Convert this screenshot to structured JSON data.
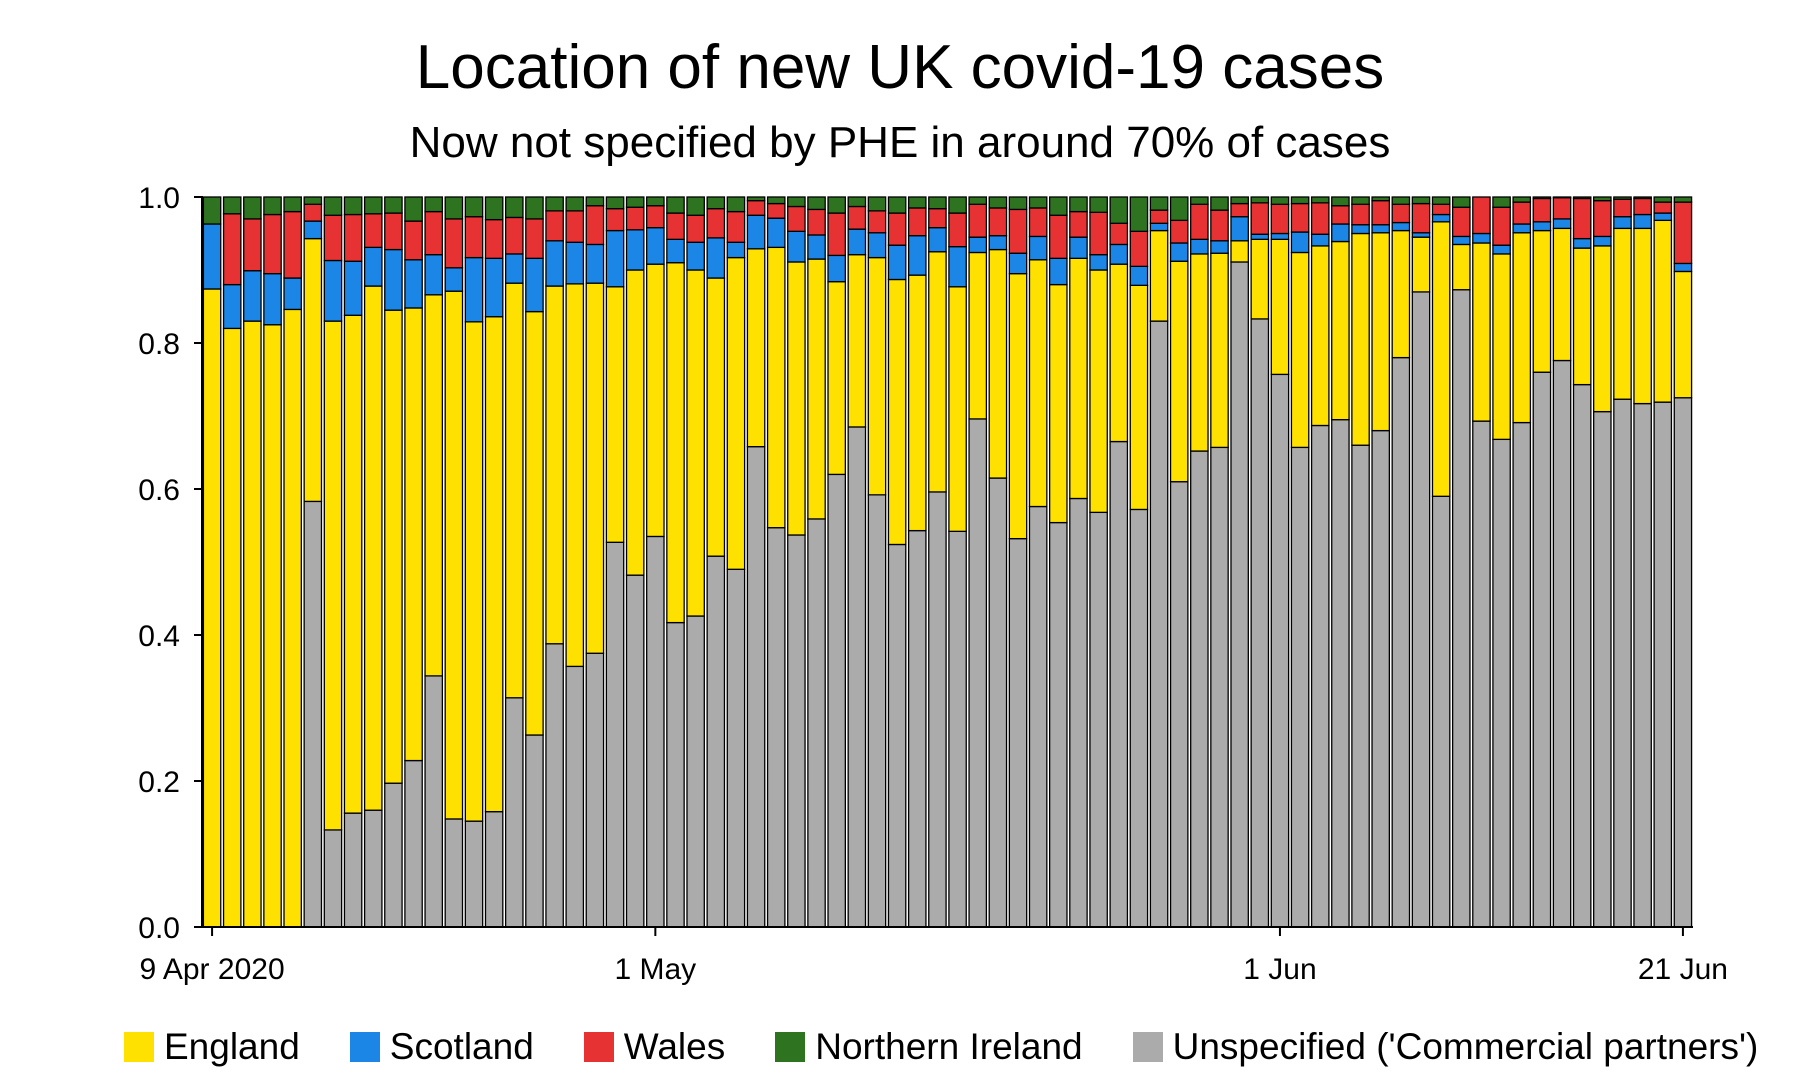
{
  "chart_data": {
    "type": "bar",
    "stacked": true,
    "title": "Location of new UK covid-19 cases",
    "subtitle": "Now not specified by PHE in around 70% of cases",
    "ylim": [
      0,
      1
    ],
    "yticks": [
      "0.0",
      "0.2",
      "0.4",
      "0.6",
      "0.8",
      "1.0"
    ],
    "xticks": [
      {
        "label": "9 Apr 2020",
        "index": 0
      },
      {
        "label": "1 May",
        "index": 22
      },
      {
        "label": "1 Jun",
        "index": 53
      },
      {
        "label": "21 Jun",
        "index": 73
      }
    ],
    "grid": false,
    "legend_position": "bottom",
    "categories": [
      "9 Apr",
      "10 Apr",
      "11 Apr",
      "12 Apr",
      "13 Apr",
      "14 Apr",
      "15 Apr",
      "16 Apr",
      "17 Apr",
      "18 Apr",
      "19 Apr",
      "20 Apr",
      "21 Apr",
      "22 Apr",
      "23 Apr",
      "24 Apr",
      "25 Apr",
      "26 Apr",
      "27 Apr",
      "28 Apr",
      "29 Apr",
      "30 Apr",
      "1 May",
      "2 May",
      "3 May",
      "4 May",
      "5 May",
      "6 May",
      "7 May",
      "8 May",
      "9 May",
      "10 May",
      "11 May",
      "12 May",
      "13 May",
      "14 May",
      "15 May",
      "16 May",
      "17 May",
      "18 May",
      "19 May",
      "20 May",
      "21 May",
      "22 May",
      "23 May",
      "24 May",
      "25 May",
      "26 May",
      "27 May",
      "28 May",
      "29 May",
      "30 May",
      "31 May",
      "1 Jun",
      "2 Jun",
      "3 Jun",
      "4 Jun",
      "5 Jun",
      "6 Jun",
      "7 Jun",
      "8 Jun",
      "9 Jun",
      "10 Jun",
      "11 Jun",
      "12 Jun",
      "13 Jun",
      "14 Jun",
      "15 Jun",
      "16 Jun",
      "17 Jun",
      "18 Jun",
      "19 Jun",
      "20 Jun",
      "21 Jun"
    ],
    "series": [
      {
        "name": "Unspecified ('Commercial partners')",
        "color": "#ababab",
        "values": [
          0,
          0,
          0,
          0,
          0,
          0.583,
          0.133,
          0.156,
          0.16,
          0.197,
          0.228,
          0.344,
          0.148,
          0.145,
          0.158,
          0.314,
          0.263,
          0.388,
          0.357,
          0.375,
          0.527,
          0.482,
          0.535,
          0.417,
          0.426,
          0.508,
          0.49,
          0.658,
          0.547,
          0.537,
          0.559,
          0.62,
          0.685,
          0.592,
          0.524,
          0.543,
          0.596,
          0.542,
          0.696,
          0.615,
          0.532,
          0.576,
          0.554,
          0.587,
          0.568,
          0.665,
          0.572,
          0.83,
          0.61,
          0.652,
          0.657,
          0.911,
          0.833,
          0.757,
          0.657,
          0.687,
          0.695,
          0.66,
          0.68,
          0.78,
          0.87,
          0.59,
          0.873,
          0.693,
          0.668,
          0.691,
          0.76,
          0.776,
          0.743,
          0.706,
          0.723,
          0.717,
          0.719,
          0.725
        ]
      },
      {
        "name": "England",
        "color": "#ffe100",
        "values": [
          0.874,
          0.82,
          0.83,
          0.825,
          0.846,
          0.36,
          0.697,
          0.682,
          0.718,
          0.648,
          0.62,
          0.522,
          0.723,
          0.684,
          0.678,
          0.568,
          0.58,
          0.49,
          0.524,
          0.507,
          0.35,
          0.418,
          0.373,
          0.493,
          0.474,
          0.381,
          0.427,
          0.271,
          0.384,
          0.374,
          0.356,
          0.264,
          0.236,
          0.325,
          0.363,
          0.35,
          0.329,
          0.335,
          0.228,
          0.313,
          0.363,
          0.338,
          0.326,
          0.329,
          0.332,
          0.243,
          0.307,
          0.124,
          0.302,
          0.27,
          0.266,
          0.029,
          0.109,
          0.185,
          0.267,
          0.246,
          0.244,
          0.29,
          0.271,
          0.174,
          0.075,
          0.376,
          0.062,
          0.244,
          0.254,
          0.26,
          0.194,
          0.181,
          0.187,
          0.227,
          0.234,
          0.24,
          0.249,
          0.173
        ]
      },
      {
        "name": "Scotland",
        "color": "#1c86e6",
        "values": [
          0.089,
          0.06,
          0.069,
          0.07,
          0.043,
          0.024,
          0.083,
          0.074,
          0.053,
          0.083,
          0.066,
          0.055,
          0.032,
          0.088,
          0.08,
          0.04,
          0.073,
          0.062,
          0.057,
          0.053,
          0.077,
          0.055,
          0.05,
          0.032,
          0.038,
          0.055,
          0.021,
          0.046,
          0.04,
          0.042,
          0.033,
          0.036,
          0.035,
          0.034,
          0.047,
          0.054,
          0.033,
          0.055,
          0.021,
          0.019,
          0.028,
          0.032,
          0.036,
          0.029,
          0.021,
          0.027,
          0.026,
          0.01,
          0.025,
          0.02,
          0.017,
          0.033,
          0.007,
          0.008,
          0.028,
          0.016,
          0.024,
          0.012,
          0.011,
          0.011,
          0.006,
          0.01,
          0.011,
          0.013,
          0.012,
          0.012,
          0.012,
          0.013,
          0.013,
          0.013,
          0.016,
          0.019,
          0.01,
          0.011
        ]
      },
      {
        "name": "Wales",
        "color": "#e63232",
        "values": [
          0,
          0.097,
          0.071,
          0.081,
          0.091,
          0.023,
          0.062,
          0.064,
          0.046,
          0.05,
          0.053,
          0.059,
          0.067,
          0.056,
          0.053,
          0.05,
          0.054,
          0.041,
          0.043,
          0.053,
          0.03,
          0.031,
          0.03,
          0.036,
          0.037,
          0.04,
          0.042,
          0.02,
          0.02,
          0.034,
          0.035,
          0.058,
          0.031,
          0.03,
          0.044,
          0.038,
          0.026,
          0.046,
          0.045,
          0.038,
          0.06,
          0.039,
          0.059,
          0.035,
          0.058,
          0.029,
          0.048,
          0.018,
          0.031,
          0.048,
          0.042,
          0.018,
          0.043,
          0.04,
          0.039,
          0.043,
          0.025,
          0.028,
          0.033,
          0.025,
          0.04,
          0.014,
          0.04,
          0.05,
          0.052,
          0.03,
          0.032,
          0.029,
          0.055,
          0.049,
          0.024,
          0.022,
          0.015,
          0.084
        ]
      },
      {
        "name": "Northern Ireland",
        "color": "#2e7320",
        "values": [
          0.037,
          0.023,
          0.03,
          0.024,
          0.02,
          0.01,
          0.025,
          0.024,
          0.023,
          0.022,
          0.033,
          0.02,
          0.03,
          0.027,
          0.031,
          0.028,
          0.03,
          0.019,
          0.019,
          0.012,
          0.016,
          0.014,
          0.012,
          0.022,
          0.025,
          0.016,
          0.02,
          0.005,
          0.009,
          0.013,
          0.017,
          0.022,
          0.013,
          0.019,
          0.022,
          0.015,
          0.016,
          0.022,
          0.01,
          0.015,
          0.017,
          0.015,
          0.025,
          0.02,
          0.021,
          0.036,
          0.047,
          0.018,
          0.032,
          0.01,
          0.018,
          0.009,
          0.008,
          0.01,
          0.009,
          0.008,
          0.012,
          0.01,
          0.005,
          0.01,
          0.009,
          0.01,
          0.014,
          0.0,
          0.014,
          0.007,
          0.002,
          0.001,
          0.002,
          0.005,
          0.003,
          0.002,
          0.007,
          0.007
        ]
      }
    ]
  },
  "legend": {
    "items": [
      {
        "label": "England",
        "color": "#ffe100"
      },
      {
        "label": "Scotland",
        "color": "#1c86e6"
      },
      {
        "label": "Wales",
        "color": "#e63232"
      },
      {
        "label": "Northern Ireland",
        "color": "#2e7320"
      },
      {
        "label": "Unspecified ('Commercial partners')",
        "color": "#ababab"
      }
    ]
  }
}
